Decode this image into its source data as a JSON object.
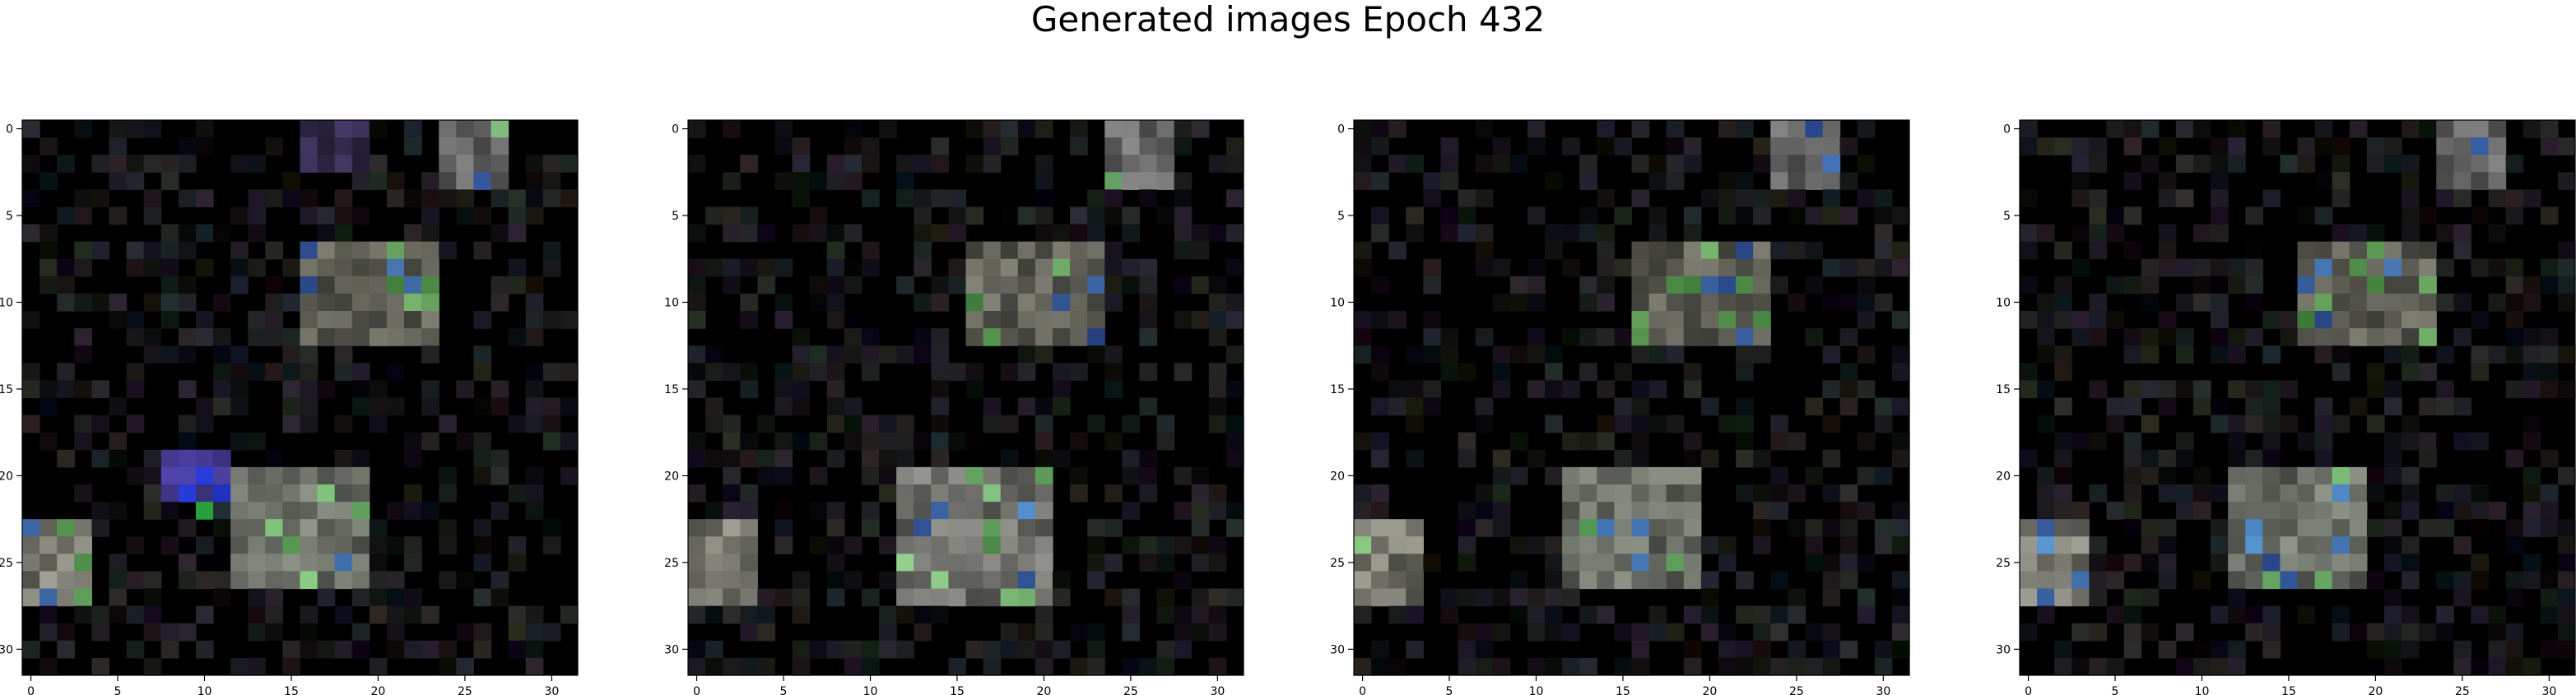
{
  "figure": {
    "title": "Generated images Epoch 432"
  },
  "chart_data": [
    {
      "type": "heatmap",
      "title": "",
      "xlabel": "",
      "ylabel": "",
      "xlim": [
        -0.5,
        31.5
      ],
      "ylim": [
        31.5,
        -0.5
      ],
      "xticks": [
        0,
        5,
        10,
        15,
        20,
        25,
        30
      ],
      "yticks": [
        0,
        5,
        10,
        15,
        20,
        25,
        30
      ],
      "grid": false,
      "grid_size": [
        32,
        32
      ],
      "features": [
        {
          "rows": [
            0,
            3
          ],
          "cols": [
            24,
            27
          ],
          "rgb": [
            120,
            120,
            120
          ],
          "desc": "top-right patch"
        },
        {
          "rows": [
            0,
            2
          ],
          "cols": [
            16,
            19
          ],
          "rgb": [
            60,
            50,
            90
          ]
        },
        {
          "rows": [
            7,
            12
          ],
          "cols": [
            16,
            23
          ],
          "rgb": [
            110,
            110,
            100
          ]
        },
        {
          "rows": [
            20,
            26
          ],
          "cols": [
            12,
            19
          ],
          "rgb": [
            125,
            130,
            120
          ]
        },
        {
          "rows": [
            23,
            27
          ],
          "cols": [
            0,
            3
          ],
          "rgb": [
            140,
            140,
            130
          ]
        },
        {
          "rows": [
            19,
            21
          ],
          "cols": [
            8,
            11
          ],
          "rgb": [
            70,
            60,
            150
          ]
        },
        {
          "rows": [
            22,
            22
          ],
          "cols": [
            10,
            10
          ],
          "rgb": [
            70,
            170,
            110
          ]
        }
      ]
    },
    {
      "type": "heatmap",
      "title": "",
      "xlabel": "",
      "ylabel": "",
      "xlim": [
        -0.5,
        31.5
      ],
      "ylim": [
        31.5,
        -0.5
      ],
      "xticks": [
        0,
        5,
        10,
        15,
        20,
        25,
        30
      ],
      "yticks": [
        0,
        5,
        10,
        15,
        20,
        25,
        30
      ],
      "grid": false,
      "grid_size": [
        32,
        32
      ],
      "features": [
        {
          "rows": [
            0,
            3
          ],
          "cols": [
            24,
            27
          ],
          "rgb": [
            120,
            120,
            120
          ]
        },
        {
          "rows": [
            7,
            12
          ],
          "cols": [
            16,
            23
          ],
          "rgb": [
            115,
            115,
            105
          ]
        },
        {
          "rows": [
            20,
            27
          ],
          "cols": [
            12,
            20
          ],
          "rgb": [
            130,
            130,
            125
          ]
        },
        {
          "rows": [
            23,
            27
          ],
          "cols": [
            0,
            3
          ],
          "rgb": [
            140,
            140,
            130
          ]
        }
      ]
    },
    {
      "type": "heatmap",
      "title": "",
      "xlabel": "",
      "ylabel": "",
      "xlim": [
        -0.5,
        31.5
      ],
      "ylim": [
        31.5,
        -0.5
      ],
      "xticks": [
        0,
        5,
        10,
        15,
        20,
        25,
        30
      ],
      "yticks": [
        0,
        5,
        10,
        15,
        20,
        25,
        30
      ],
      "grid": false,
      "grid_size": [
        32,
        32
      ],
      "features": [
        {
          "rows": [
            0,
            3
          ],
          "cols": [
            24,
            27
          ],
          "rgb": [
            120,
            120,
            120
          ]
        },
        {
          "rows": [
            7,
            12
          ],
          "cols": [
            16,
            23
          ],
          "rgb": [
            110,
            110,
            100
          ]
        },
        {
          "rows": [
            20,
            26
          ],
          "cols": [
            12,
            19
          ],
          "rgb": [
            125,
            130,
            120
          ]
        },
        {
          "rows": [
            23,
            27
          ],
          "cols": [
            0,
            3
          ],
          "rgb": [
            140,
            140,
            130
          ]
        }
      ]
    },
    {
      "type": "heatmap",
      "title": "",
      "xlabel": "",
      "ylabel": "",
      "xlim": [
        -0.5,
        31.5
      ],
      "ylim": [
        31.5,
        -0.5
      ],
      "xticks": [
        0,
        5,
        10,
        15,
        20,
        25,
        30
      ],
      "yticks": [
        0,
        5,
        10,
        15,
        20,
        25,
        30
      ],
      "grid": false,
      "grid_size": [
        32,
        32
      ],
      "features": [
        {
          "rows": [
            0,
            3
          ],
          "cols": [
            24,
            27
          ],
          "rgb": [
            120,
            120,
            120
          ]
        },
        {
          "rows": [
            7,
            12
          ],
          "cols": [
            16,
            23
          ],
          "rgb": [
            110,
            110,
            100
          ]
        },
        {
          "rows": [
            20,
            26
          ],
          "cols": [
            12,
            19
          ],
          "rgb": [
            125,
            130,
            120
          ]
        },
        {
          "rows": [
            23,
            27
          ],
          "cols": [
            0,
            3
          ],
          "rgb": [
            140,
            140,
            130
          ]
        }
      ]
    }
  ]
}
